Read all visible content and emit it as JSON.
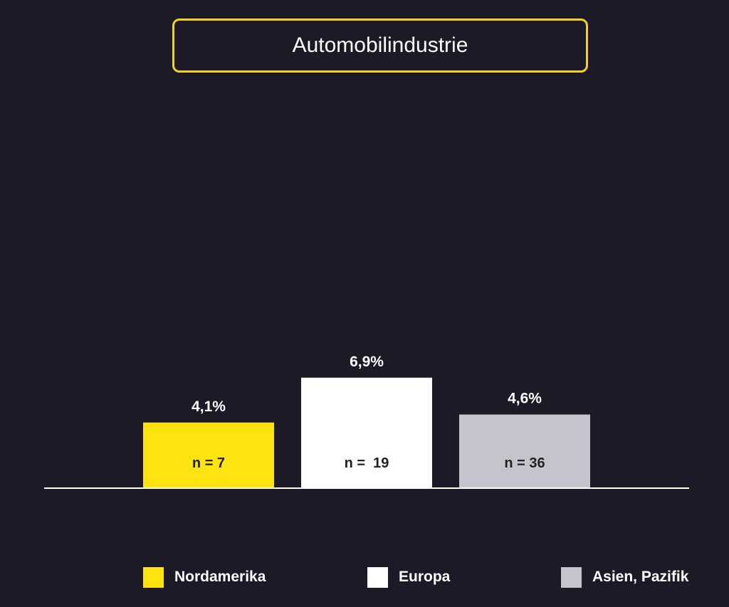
{
  "colors": {
    "background": "#1b1a26",
    "title_border": "#f2d21f",
    "axis": "#ffffff",
    "value_label": "#ffffff",
    "inner_label": "#222222"
  },
  "chart_data": {
    "type": "bar",
    "title": "Automobilindustrie",
    "xlabel": "",
    "ylabel": "",
    "ylim": [
      0,
      10
    ],
    "grid": false,
    "legend_placement": "bottom",
    "categories": [
      "Nordamerika",
      "Europa",
      "Asien, Pazifik"
    ],
    "values": [
      4.1,
      6.9,
      4.6
    ],
    "value_labels": [
      "4,1%",
      "6,9%",
      "4,6%"
    ],
    "n_labels": [
      "n = 7",
      "n =  19",
      "n = 36"
    ],
    "bar_colors": [
      "#fde30f",
      "#ffffff",
      "#c4c4cc"
    ],
    "legend": [
      {
        "label": "Nordamerika",
        "color": "#fde30f"
      },
      {
        "label": "Europa",
        "color": "#ffffff"
      },
      {
        "label": "Asien, Pazifik",
        "color": "#c4c4cc"
      }
    ]
  }
}
